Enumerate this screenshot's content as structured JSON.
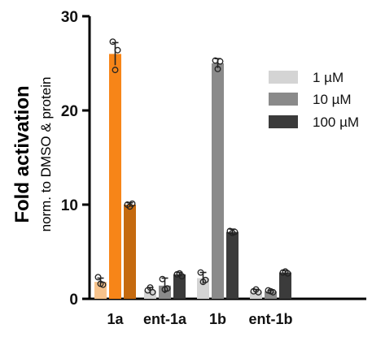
{
  "chart_data": {
    "type": "bar",
    "ylabel": "Fold activation",
    "ylabel_sub": "norm. to DMSO & protein",
    "ylim": [
      0,
      30
    ],
    "yticks": [
      0,
      10,
      20,
      30
    ],
    "categories": [
      "1a",
      "ent-1a",
      "1b",
      "ent-1b"
    ],
    "series": [
      {
        "name": "1 µM",
        "values": [
          1.8,
          0.9,
          2.2,
          0.8
        ]
      },
      {
        "name": "10 µM",
        "values": [
          26.0,
          1.4,
          25.0,
          0.8
        ]
      },
      {
        "name": "100 µM",
        "values": [
          10.0,
          2.6,
          7.1,
          2.8
        ]
      }
    ],
    "error": [
      [
        0.4,
        0.3,
        0.6,
        0.2
      ],
      [
        1.2,
        0.8,
        0.5,
        0.1
      ],
      [
        0.2,
        0.2,
        0.3,
        0.2
      ]
    ],
    "points": [
      [
        [
          2.3,
          1.6,
          1.5
        ],
        [
          0.9,
          1.2,
          0.7
        ],
        [
          2.8,
          1.8,
          2.0
        ],
        [
          0.8,
          1.0,
          0.7
        ]
      ],
      [
        [
          27.3,
          24.3,
          26.4
        ],
        [
          2.1,
          1.0,
          1.1
        ],
        [
          25.3,
          24.4,
          25.2
        ],
        [
          0.9,
          0.8,
          0.7
        ]
      ],
      [
        [
          10.0,
          9.8,
          10.1
        ],
        [
          2.6,
          2.7,
          2.4
        ],
        [
          7.2,
          7.0,
          7.1
        ],
        [
          2.8,
          2.9,
          2.7
        ]
      ]
    ],
    "colors": {
      "1a": [
        "#f7c38c",
        "#f78518",
        "#c56a0f"
      ],
      "ent-1a": [
        "#d4d4d4",
        "#8a8a8a",
        "#3b3b3b"
      ],
      "1b": [
        "#d4d4d4",
        "#8a8a8a",
        "#3b3b3b"
      ],
      "ent-1b": [
        "#d4d4d4",
        "#8a8a8a",
        "#3b3b3b"
      ]
    },
    "legend": {
      "placement": "top-right",
      "items": [
        {
          "label": "1 µM",
          "color": "#d4d4d4"
        },
        {
          "label": "10 µM",
          "color": "#8a8a8a"
        },
        {
          "label": "100 µM",
          "color": "#3b3b3b"
        }
      ]
    },
    "grid": false
  }
}
